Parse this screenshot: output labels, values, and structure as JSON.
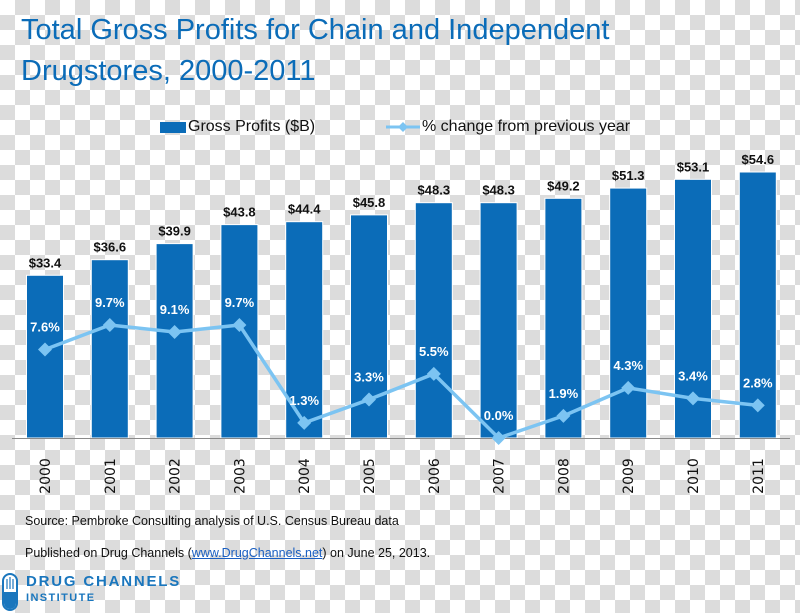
{
  "title_line1": "Total Gross Profits for Chain and Independent",
  "title_line2": "Drugstores, 2000-2011",
  "legend": {
    "bar_label": "Gross Profits ($B)",
    "line_label": "% change from previous year"
  },
  "colors": {
    "bar": "#0b6cb8",
    "line": "#7cc4f2",
    "title": "#0b6cb8",
    "axis": "#8a8a8a"
  },
  "chart_data": {
    "type": "bar",
    "title": "Total Gross Profits for Chain and Independent Drugstores, 2000-2011",
    "xlabel": "",
    "ylabel": "",
    "categories": [
      "2000",
      "2001",
      "2002",
      "2003",
      "2004",
      "2005",
      "2006",
      "2007",
      "2008",
      "2009",
      "2010",
      "2011"
    ],
    "series": [
      {
        "name": "Gross Profits ($B)",
        "type": "bar",
        "values": [
          33.4,
          36.6,
          39.9,
          43.8,
          44.4,
          45.8,
          48.3,
          48.3,
          49.2,
          51.3,
          53.1,
          54.6
        ],
        "labels": [
          "$33.4",
          "$36.6",
          "$39.9",
          "$43.8",
          "$44.4",
          "$45.8",
          "$48.3",
          "$48.3",
          "$49.2",
          "$51.3",
          "$53.1",
          "$54.6"
        ]
      },
      {
        "name": "% change from previous year",
        "type": "line",
        "values": [
          7.6,
          9.7,
          9.1,
          9.7,
          1.3,
          3.3,
          5.5,
          0.0,
          1.9,
          4.3,
          3.4,
          2.8
        ],
        "labels": [
          "7.6%",
          "9.7%",
          "9.1%",
          "9.7%",
          "1.3%",
          "3.3%",
          "5.5%",
          "0.0%",
          "1.9%",
          "4.3%",
          "3.4%",
          "2.8%"
        ]
      }
    ],
    "ylim_bar": [
      0,
      54.6
    ],
    "ylim_line": [
      0,
      9.7
    ],
    "grid": false,
    "legend_position": "top-center"
  },
  "footer": {
    "source": "Source: Pembroke Consulting analysis of U.S. Census Bureau data",
    "published_prefix": "Published on Drug Channels (",
    "published_link": "www.DrugChannels.net",
    "published_suffix": ") on June 25, 2013."
  },
  "logo": {
    "line1": "DRUG CHANNELS",
    "line2": "INSTITUTE",
    "icon": "capsule-icon"
  }
}
